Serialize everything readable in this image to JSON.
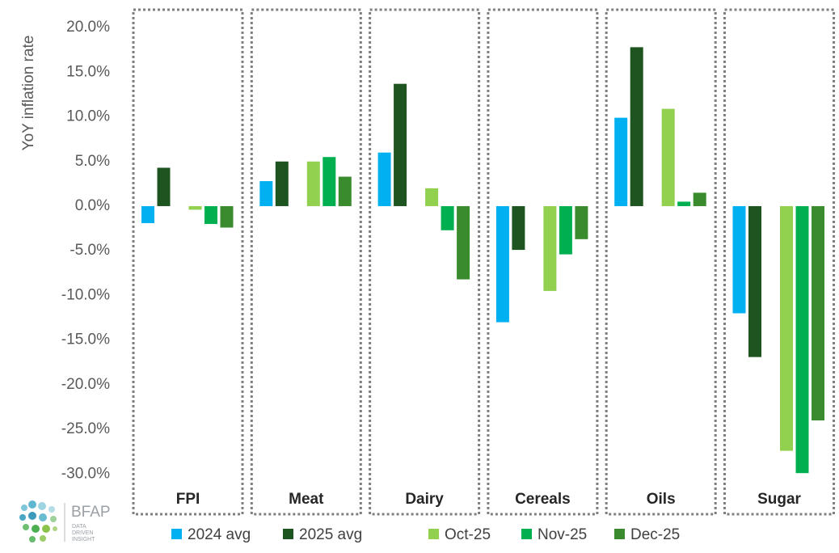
{
  "chart_data": {
    "type": "bar",
    "y_label": "YoY inflation rate",
    "categories": [
      "FPI",
      "Meat",
      "Dairy",
      "Cereals",
      "Oils",
      "Sugar"
    ],
    "series": [
      {
        "name": "2024 avg",
        "color": "#00b0f0",
        "values": [
          -1.9,
          2.8,
          6.0,
          -13.0,
          9.9,
          -12.0
        ]
      },
      {
        "name": "2025 avg",
        "color": "#1e5420",
        "values": [
          4.3,
          5.0,
          13.7,
          -4.9,
          17.8,
          -16.9
        ]
      },
      {
        "name": "Oct-25",
        "color": "#92d050",
        "values": [
          -0.4,
          5.0,
          2.0,
          -9.5,
          10.9,
          -27.4
        ]
      },
      {
        "name": "Nov-25",
        "color": "#00b050",
        "values": [
          -2.0,
          5.5,
          -2.7,
          -5.4,
          0.5,
          -29.9
        ]
      },
      {
        "name": "Dec-25",
        "color": "#3a8a2e",
        "values": [
          -2.4,
          3.3,
          -8.2,
          -3.7,
          1.5,
          -24.0
        ]
      }
    ],
    "ylim": [
      -34.5,
      22
    ],
    "yticks": [
      {
        "value": 20,
        "label": "20.0%"
      },
      {
        "value": 15,
        "label": "15.0%"
      },
      {
        "value": 10,
        "label": "10.0%"
      },
      {
        "value": 5,
        "label": "5.0%"
      },
      {
        "value": 0,
        "label": "0.0%"
      },
      {
        "value": -5,
        "label": "-5.0%"
      },
      {
        "value": -10,
        "label": "-10.0%"
      },
      {
        "value": -15,
        "label": "-15.0%"
      },
      {
        "value": -20,
        "label": "-20.0%"
      },
      {
        "value": -25,
        "label": "-25.0%"
      },
      {
        "value": -30,
        "label": "-30.0%"
      }
    ],
    "grid": false,
    "logo": {
      "name": "BFAP",
      "tagline": [
        "DATA",
        "DRIVEN",
        "INSIGHT"
      ]
    }
  }
}
